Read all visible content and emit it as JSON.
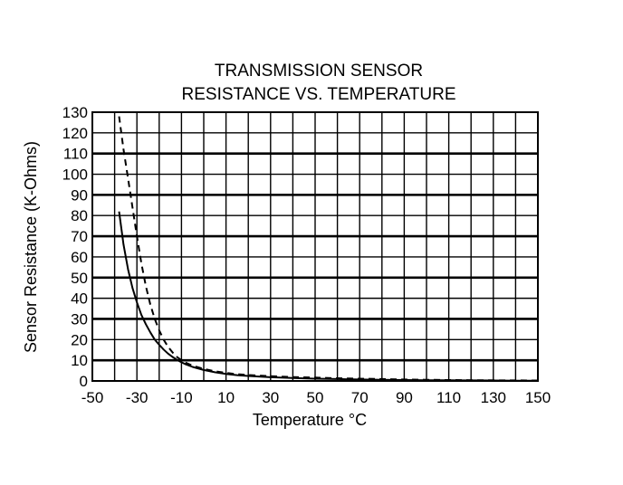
{
  "chart_data": {
    "type": "line",
    "title": [
      "TRANSMISSION SENSOR",
      "RESISTANCE VS. TEMPERATURE"
    ],
    "xlabel": "Temperature °C",
    "ylabel": "Sensor Resistance (K-Ohms)",
    "xlim": [
      -50,
      150
    ],
    "ylim": [
      0,
      130
    ],
    "x_ticks": [
      "-50",
      "-30",
      "-10",
      "10",
      "30",
      "50",
      "70",
      "90",
      "110",
      "130",
      "150"
    ],
    "y_ticks": [
      "0",
      "10",
      "20",
      "30",
      "40",
      "50",
      "60",
      "70",
      "80",
      "90",
      "100",
      "110",
      "120",
      "130"
    ],
    "grid": true,
    "series": [
      {
        "style": "solid",
        "color": "#000000",
        "points": [
          [
            -38,
            82
          ],
          [
            -36,
            66
          ],
          [
            -34,
            54
          ],
          [
            -32,
            45
          ],
          [
            -30,
            38
          ],
          [
            -28,
            32
          ],
          [
            -26,
            27.5
          ],
          [
            -24,
            23.5
          ],
          [
            -22,
            20
          ],
          [
            -20,
            17.5
          ],
          [
            -18,
            15.2
          ],
          [
            -16,
            13.2
          ],
          [
            -14,
            11.6
          ],
          [
            -12,
            10.2
          ],
          [
            -10,
            9
          ],
          [
            -8,
            8
          ],
          [
            -5,
            6.8
          ],
          [
            0,
            5.3
          ],
          [
            5,
            4.2
          ],
          [
            10,
            3.4
          ],
          [
            15,
            2.8
          ],
          [
            20,
            2.4
          ],
          [
            30,
            1.8
          ],
          [
            40,
            1.4
          ],
          [
            50,
            1.1
          ],
          [
            60,
            0.9
          ],
          [
            70,
            0.7
          ],
          [
            80,
            0.55
          ],
          [
            90,
            0.45
          ],
          [
            100,
            0.35
          ],
          [
            110,
            0.3
          ],
          [
            120,
            0.25
          ],
          [
            130,
            0.2
          ],
          [
            140,
            0.15
          ],
          [
            150,
            0.12
          ]
        ]
      },
      {
        "style": "dashed",
        "color": "#000000",
        "points": [
          [
            -38,
            128
          ],
          [
            -36,
            112
          ],
          [
            -34,
            98
          ],
          [
            -32,
            84
          ],
          [
            -30,
            70
          ],
          [
            -28,
            57
          ],
          [
            -26,
            46
          ],
          [
            -24,
            37
          ],
          [
            -22,
            30
          ],
          [
            -20,
            24.5
          ],
          [
            -18,
            20
          ],
          [
            -16,
            16.5
          ],
          [
            -14,
            13.8
          ],
          [
            -12,
            11.6
          ],
          [
            -10,
            10
          ],
          [
            -8,
            8.8
          ],
          [
            -5,
            7.4
          ],
          [
            0,
            5.8
          ],
          [
            5,
            4.7
          ],
          [
            10,
            3.9
          ],
          [
            15,
            3.3
          ],
          [
            20,
            2.9
          ],
          [
            30,
            2.3
          ],
          [
            40,
            1.9
          ],
          [
            50,
            1.6
          ],
          [
            60,
            1.3
          ],
          [
            70,
            1.1
          ],
          [
            80,
            0.9
          ],
          [
            90,
            0.7
          ],
          [
            100,
            0.55
          ],
          [
            110,
            0.45
          ],
          [
            120,
            0.35
          ],
          [
            130,
            0.3
          ],
          [
            140,
            0.25
          ],
          [
            150,
            0.2
          ]
        ]
      }
    ]
  }
}
